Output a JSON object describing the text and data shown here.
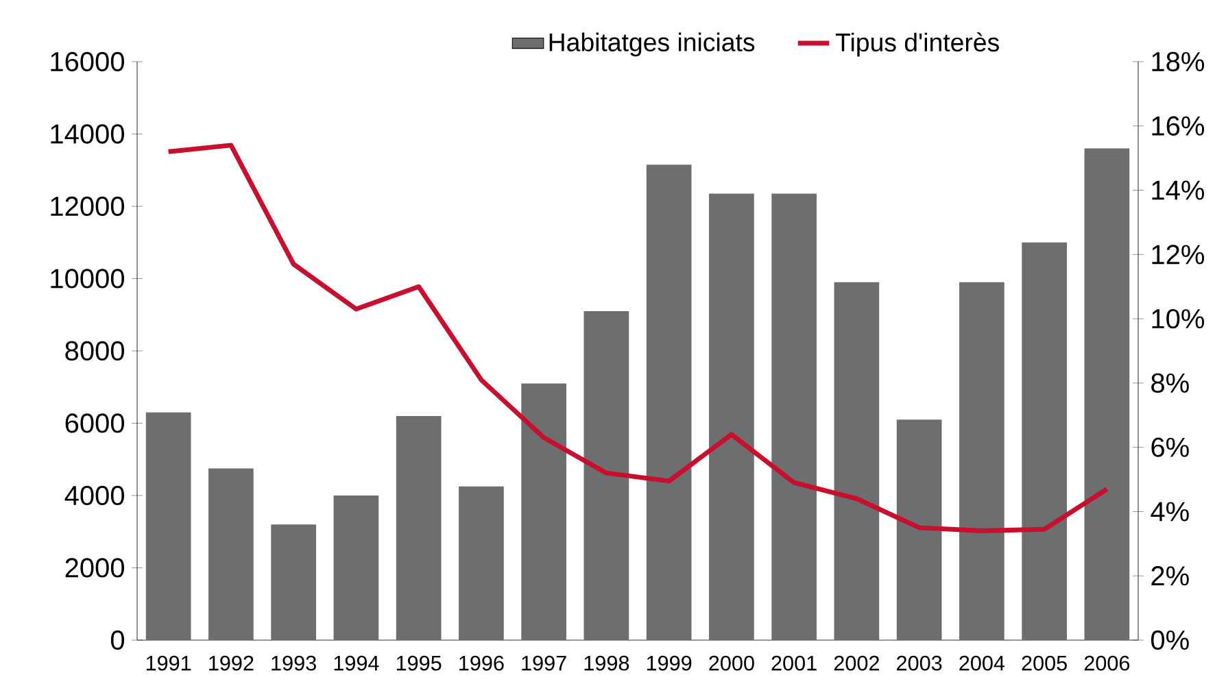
{
  "chart_data": {
    "type": "bar",
    "categories": [
      "1991",
      "1992",
      "1993",
      "1994",
      "1995",
      "1996",
      "1997",
      "1998",
      "1999",
      "2000",
      "2001",
      "2002",
      "2003",
      "2004",
      "2005",
      "2006"
    ],
    "series": [
      {
        "name": "Habitatges iniciats",
        "color": "#6d6e70",
        "values": [
          6300,
          4750,
          3200,
          4000,
          6200,
          4250,
          7100,
          9100,
          13150,
          12350,
          12350,
          9900,
          6100,
          9900,
          11000,
          13600
        ]
      },
      {
        "name": "Tipus d'interès",
        "type": "line",
        "axis": "y2",
        "color": "#c8102e",
        "values": [
          15.2,
          15.4,
          11.7,
          10.3,
          11.0,
          8.1,
          6.3,
          5.2,
          4.95,
          6.4,
          4.9,
          4.4,
          3.5,
          3.4,
          3.45,
          4.7
        ]
      }
    ],
    "ylim": [
      0,
      16000
    ],
    "yticks": [
      0,
      2000,
      4000,
      6000,
      8000,
      10000,
      12000,
      14000,
      16000
    ],
    "y2lim": [
      0,
      18
    ],
    "y2ticks": [
      {
        "value": 0,
        "label": "0%"
      },
      {
        "value": 2,
        "label": "2%"
      },
      {
        "value": 4,
        "label": "4%"
      },
      {
        "value": 6,
        "label": "6%"
      },
      {
        "value": 8,
        "label": "8%"
      },
      {
        "value": 10,
        "label": "10%"
      },
      {
        "value": 12,
        "label": "12%"
      },
      {
        "value": 14,
        "label": "14%"
      },
      {
        "value": 16,
        "label": "16%"
      },
      {
        "value": 18,
        "label": "18%"
      }
    ],
    "legend": "top",
    "grid": false
  }
}
